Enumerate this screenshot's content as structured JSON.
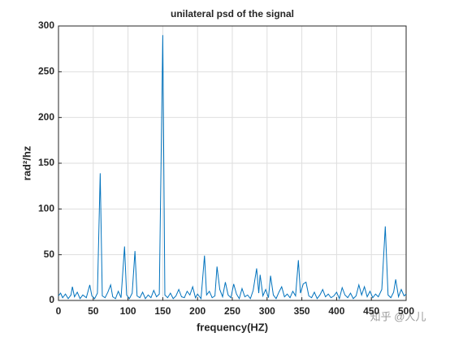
{
  "chart_data": {
    "type": "line",
    "title": "unilateral  psd of the signal",
    "xlabel": "frequency(HZ)",
    "ylabel": "rad²/hz",
    "annotation": "知乎 @人儿",
    "x": [
      0,
      3,
      6,
      10,
      14,
      18,
      20,
      23,
      27,
      31,
      35,
      40,
      45,
      48,
      52,
      56,
      60,
      63,
      67,
      71,
      75,
      78,
      82,
      86,
      90,
      95,
      98,
      102,
      106,
      110,
      113,
      117,
      121,
      125,
      129,
      133,
      137,
      141,
      145,
      150,
      153,
      157,
      161,
      165,
      169,
      173,
      177,
      181,
      185,
      189,
      193,
      197,
      200,
      205,
      210,
      213,
      217,
      221,
      225,
      228,
      232,
      236,
      240,
      244,
      248,
      252,
      256,
      260,
      264,
      268,
      272,
      276,
      280,
      285,
      288,
      290,
      294,
      298,
      302,
      305,
      309,
      313,
      317,
      321,
      325,
      329,
      333,
      337,
      341,
      345,
      348,
      352,
      356,
      360,
      364,
      368,
      372,
      376,
      380,
      384,
      388,
      392,
      396,
      400,
      404,
      408,
      412,
      416,
      420,
      424,
      428,
      432,
      436,
      440,
      444,
      448,
      452,
      456,
      460,
      465,
      470,
      474,
      478,
      482,
      485,
      489,
      493,
      497,
      500
    ],
    "values": [
      5,
      8,
      3,
      7,
      2,
      6,
      15,
      4,
      9,
      2,
      6,
      3,
      17,
      5,
      2,
      8,
      139,
      5,
      3,
      9,
      17,
      4,
      2,
      10,
      3,
      59,
      6,
      2,
      8,
      54,
      5,
      3,
      9,
      2,
      6,
      3,
      11,
      4,
      7,
      290,
      6,
      3,
      8,
      2,
      5,
      12,
      4,
      3,
      10,
      6,
      15,
      3,
      7,
      2,
      49,
      6,
      10,
      3,
      5,
      37,
      12,
      4,
      20,
      6,
      3,
      18,
      7,
      2,
      13,
      4,
      6,
      2,
      11,
      35,
      8,
      28,
      5,
      12,
      3,
      27,
      6,
      2,
      9,
      15,
      4,
      7,
      3,
      10,
      5,
      44,
      8,
      18,
      20,
      5,
      3,
      9,
      2,
      6,
      12,
      4,
      7,
      3,
      5,
      9,
      2,
      14,
      6,
      3,
      8,
      2,
      5,
      17,
      6,
      15,
      4,
      10,
      3,
      7,
      4,
      12,
      81,
      6,
      3,
      9,
      23,
      4,
      12,
      5,
      7
    ],
    "color": "#0072bd",
    "xlim": [
      0,
      500
    ],
    "ylim": [
      0,
      300
    ],
    "xticks": [
      0,
      50,
      100,
      150,
      200,
      250,
      300,
      350,
      400,
      450,
      500
    ],
    "yticks": [
      0,
      50,
      100,
      150,
      200,
      250,
      300
    ],
    "grid": true
  }
}
